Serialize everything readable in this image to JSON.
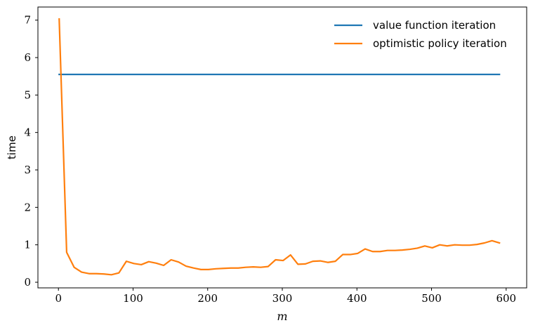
{
  "chart_data": {
    "type": "line",
    "xlabel": "m",
    "ylabel": "time",
    "xlim": [
      -27.5,
      627.5
    ],
    "ylim": [
      -0.15,
      7.35
    ],
    "xticks": [
      0,
      100,
      200,
      300,
      400,
      500,
      600
    ],
    "yticks": [
      0,
      1,
      2,
      3,
      4,
      5,
      6,
      7
    ],
    "grid": false,
    "legend_position": "top-right",
    "series": [
      {
        "name": "value function iteration",
        "color": "#1f77b4",
        "x": [
          1,
          591
        ],
        "y": [
          5.55,
          5.55
        ]
      },
      {
        "name": "optimistic policy iteration",
        "color": "#ff7f0e",
        "x": [
          1,
          11,
          21,
          31,
          41,
          51,
          61,
          71,
          81,
          91,
          101,
          111,
          121,
          131,
          141,
          151,
          161,
          171,
          181,
          191,
          201,
          211,
          221,
          231,
          241,
          251,
          261,
          271,
          281,
          291,
          301,
          311,
          321,
          331,
          341,
          351,
          361,
          371,
          381,
          391,
          401,
          411,
          421,
          431,
          441,
          451,
          461,
          471,
          481,
          491,
          501,
          511,
          521,
          531,
          541,
          551,
          561,
          571,
          581,
          591
        ],
        "y": [
          7.03,
          0.8,
          0.4,
          0.27,
          0.23,
          0.23,
          0.22,
          0.2,
          0.25,
          0.56,
          0.5,
          0.47,
          0.55,
          0.51,
          0.45,
          0.6,
          0.54,
          0.43,
          0.38,
          0.34,
          0.34,
          0.36,
          0.37,
          0.38,
          0.38,
          0.4,
          0.41,
          0.4,
          0.42,
          0.6,
          0.58,
          0.73,
          0.48,
          0.49,
          0.56,
          0.57,
          0.53,
          0.56,
          0.74,
          0.74,
          0.77,
          0.89,
          0.82,
          0.82,
          0.85,
          0.85,
          0.86,
          0.88,
          0.91,
          0.97,
          0.92,
          1.0,
          0.97,
          1.0,
          0.99,
          0.99,
          1.01,
          1.05,
          1.11,
          1.05
        ]
      }
    ]
  }
}
